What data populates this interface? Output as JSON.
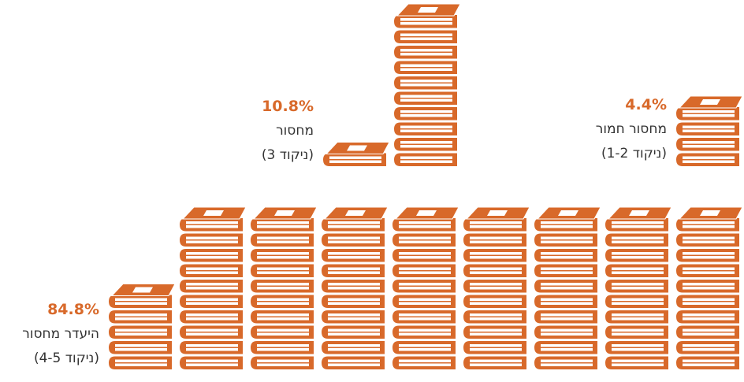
{
  "chart_data": {
    "type": "pictograph",
    "color": "#d8692a",
    "groups": [
      {
        "value_label": "4.4%",
        "label": "מחסור חמור",
        "note": "(ניקוד 1-2)"
      },
      {
        "value_label": "10.8%",
        "label": "מחסור",
        "note": "(ניקוד 3)"
      },
      {
        "value_label": "84.8%",
        "label": "היעדר מחסור",
        "note": "(ניקוד 4-5)"
      }
    ],
    "values": [
      4.4,
      10.8,
      84.8
    ]
  }
}
